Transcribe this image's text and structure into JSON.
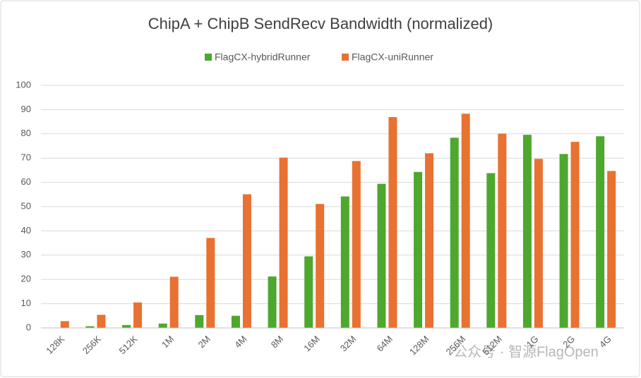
{
  "chart_data": {
    "type": "bar",
    "title": "ChipA + ChipB SendRecv Bandwidth (normalized)",
    "categories": [
      "128K",
      "256K",
      "512K",
      "1M",
      "2M",
      "4M",
      "8M",
      "16M",
      "32M",
      "64M",
      "128M",
      "256M",
      "512M",
      "1G",
      "2G",
      "4G"
    ],
    "series": [
      {
        "name": "FlagCX-hybridRunner",
        "color": "#4ea72e",
        "values": [
          0,
          0.7,
          1.2,
          1.8,
          5.3,
          5,
          21.2,
          29.5,
          54.2,
          59.4,
          64.3,
          78.4,
          63.8,
          79.6,
          71.7,
          79.0
        ]
      },
      {
        "name": "FlagCX-uniRunner",
        "color": "#e97132",
        "values": [
          2.8,
          5.4,
          10.5,
          21.1,
          37.1,
          55.1,
          70.2,
          51.1,
          68.8,
          86.9,
          72,
          88.3,
          80.1,
          69.7,
          76.7,
          64.7
        ]
      }
    ],
    "ylim": [
      0,
      100
    ],
    "yticks": [
      0,
      10,
      20,
      30,
      40,
      50,
      60,
      70,
      80,
      90,
      100
    ],
    "grid": true,
    "legend": "top",
    "watermark": "公众号 · 智源FlagOpen"
  }
}
